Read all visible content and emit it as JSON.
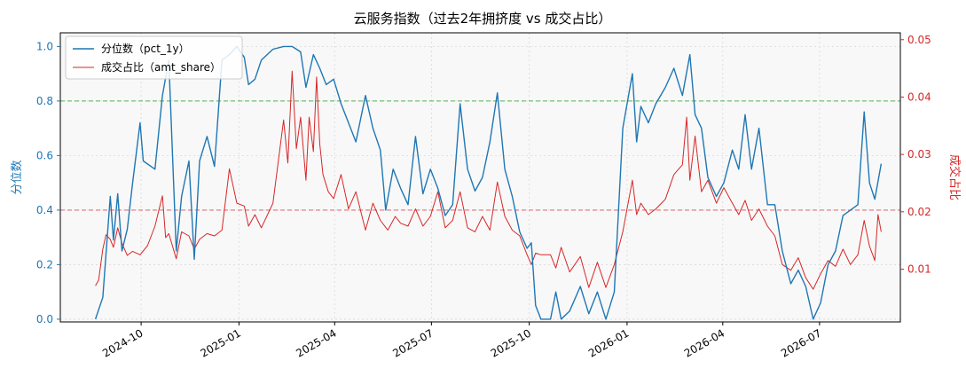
{
  "chart_data": {
    "type": "line",
    "title": "云服务指数（过去2年拥挤度 vs 成交占比）",
    "ylabel_left": "分位数",
    "ylabel_right": "成交占比",
    "x_axis": {
      "range": [
        "2024-07-17",
        "2026-09-15"
      ],
      "ticks": [
        "2024-10",
        "2025-01",
        "2025-04",
        "2025-07",
        "2025-10",
        "2026-01",
        "2026-04",
        "2026-07"
      ]
    },
    "y_left": {
      "range": [
        -0.01,
        1.05
      ],
      "ticks": [
        "0.0",
        "0.2",
        "0.4",
        "0.6",
        "0.8",
        "1.0"
      ]
    },
    "y_right": {
      "range": [
        0.0008,
        0.0512
      ],
      "ticks": [
        "0.01",
        "0.02",
        "0.03",
        "0.04",
        "0.05"
      ]
    },
    "reference_lines": [
      {
        "axis": "left",
        "value": 0.8,
        "color": "#2ca02c",
        "style": "dashed"
      },
      {
        "axis": "left",
        "value": 0.4,
        "color": "#d62728",
        "style": "dashed"
      }
    ],
    "grid": true,
    "legend_position": "top-left",
    "series": [
      {
        "name": "分位数（pct_1y）",
        "axis": "left",
        "color": "#1f77b4",
        "points": [
          [
            "2024-08-19",
            0.0
          ],
          [
            "2024-08-26",
            0.08
          ],
          [
            "2024-09-02",
            0.45
          ],
          [
            "2024-09-05",
            0.29
          ],
          [
            "2024-09-09",
            0.46
          ],
          [
            "2024-09-13",
            0.25
          ],
          [
            "2024-09-18",
            0.33
          ],
          [
            "2024-09-23",
            0.5
          ],
          [
            "2024-09-30",
            0.72
          ],
          [
            "2024-10-03",
            0.58
          ],
          [
            "2024-10-14",
            0.55
          ],
          [
            "2024-10-21",
            0.82
          ],
          [
            "2024-10-27",
            0.95
          ],
          [
            "2024-11-03",
            0.25
          ],
          [
            "2024-11-08",
            0.45
          ],
          [
            "2024-11-15",
            0.58
          ],
          [
            "2024-11-20",
            0.22
          ],
          [
            "2024-11-25",
            0.58
          ],
          [
            "2024-12-02",
            0.67
          ],
          [
            "2024-12-09",
            0.56
          ],
          [
            "2024-12-16",
            0.95
          ],
          [
            "2024-12-23",
            0.97
          ],
          [
            "2024-12-30",
            1.0
          ],
          [
            "2025-01-06",
            0.96
          ],
          [
            "2025-01-10",
            0.86
          ],
          [
            "2025-01-16",
            0.88
          ],
          [
            "2025-01-22",
            0.95
          ],
          [
            "2025-02-02",
            0.99
          ],
          [
            "2025-02-12",
            1.0
          ],
          [
            "2025-02-20",
            1.0
          ],
          [
            "2025-02-28",
            0.98
          ],
          [
            "2025-03-05",
            0.85
          ],
          [
            "2025-03-12",
            0.97
          ],
          [
            "2025-03-18",
            0.92
          ],
          [
            "2025-03-24",
            0.86
          ],
          [
            "2025-03-31",
            0.88
          ],
          [
            "2025-04-07",
            0.79
          ],
          [
            "2025-04-14",
            0.72
          ],
          [
            "2025-04-21",
            0.65
          ],
          [
            "2025-04-30",
            0.82
          ],
          [
            "2025-05-07",
            0.7
          ],
          [
            "2025-05-14",
            0.62
          ],
          [
            "2025-05-19",
            0.4
          ],
          [
            "2025-05-26",
            0.55
          ],
          [
            "2025-06-02",
            0.48
          ],
          [
            "2025-06-09",
            0.42
          ],
          [
            "2025-06-16",
            0.67
          ],
          [
            "2025-06-23",
            0.46
          ],
          [
            "2025-06-30",
            0.55
          ],
          [
            "2025-07-07",
            0.48
          ],
          [
            "2025-07-14",
            0.38
          ],
          [
            "2025-07-21",
            0.42
          ],
          [
            "2025-07-28",
            0.79
          ],
          [
            "2025-08-04",
            0.55
          ],
          [
            "2025-08-11",
            0.47
          ],
          [
            "2025-08-18",
            0.52
          ],
          [
            "2025-08-25",
            0.65
          ],
          [
            "2025-09-01",
            0.83
          ],
          [
            "2025-09-08",
            0.55
          ],
          [
            "2025-09-15",
            0.45
          ],
          [
            "2025-09-22",
            0.32
          ],
          [
            "2025-09-29",
            0.26
          ],
          [
            "2025-10-03",
            0.28
          ],
          [
            "2025-10-07",
            0.05
          ],
          [
            "2025-10-12",
            0.0
          ],
          [
            "2025-10-21",
            0.0
          ],
          [
            "2025-10-26",
            0.1
          ],
          [
            "2025-10-31",
            0.0
          ],
          [
            "2025-11-08",
            0.03
          ],
          [
            "2025-11-18",
            0.12
          ],
          [
            "2025-11-26",
            0.02
          ],
          [
            "2025-12-04",
            0.1
          ],
          [
            "2025-12-12",
            0.0
          ],
          [
            "2025-12-20",
            0.1
          ],
          [
            "2025-12-28",
            0.7
          ],
          [
            "2026-01-06",
            0.9
          ],
          [
            "2026-01-10",
            0.65
          ],
          [
            "2026-01-14",
            0.78
          ],
          [
            "2026-01-21",
            0.72
          ],
          [
            "2026-01-28",
            0.79
          ],
          [
            "2026-02-06",
            0.85
          ],
          [
            "2026-02-14",
            0.92
          ],
          [
            "2026-02-22",
            0.82
          ],
          [
            "2026-03-01",
            0.97
          ],
          [
            "2026-03-06",
            0.75
          ],
          [
            "2026-03-12",
            0.7
          ],
          [
            "2026-03-18",
            0.52
          ],
          [
            "2026-03-26",
            0.45
          ],
          [
            "2026-04-02",
            0.5
          ],
          [
            "2026-04-10",
            0.62
          ],
          [
            "2026-04-16",
            0.55
          ],
          [
            "2026-04-22",
            0.75
          ],
          [
            "2026-04-28",
            0.55
          ],
          [
            "2026-05-05",
            0.7
          ],
          [
            "2026-05-13",
            0.42
          ],
          [
            "2026-05-20",
            0.42
          ],
          [
            "2026-05-27",
            0.25
          ],
          [
            "2026-06-04",
            0.13
          ],
          [
            "2026-06-11",
            0.18
          ],
          [
            "2026-06-18",
            0.12
          ],
          [
            "2026-06-25",
            0.0
          ],
          [
            "2026-07-02",
            0.06
          ],
          [
            "2026-07-09",
            0.2
          ],
          [
            "2026-07-16",
            0.25
          ],
          [
            "2026-07-23",
            0.38
          ],
          [
            "2026-07-30",
            0.4
          ],
          [
            "2026-08-06",
            0.42
          ],
          [
            "2026-08-12",
            0.76
          ],
          [
            "2026-08-17",
            0.5
          ],
          [
            "2026-08-22",
            0.44
          ],
          [
            "2026-08-28",
            0.57
          ]
        ]
      },
      {
        "name": "成交占比（amt_share）",
        "axis": "right",
        "color": "#d62728",
        "points": [
          [
            "2024-08-19",
            0.0071
          ],
          [
            "2024-08-22",
            0.0081
          ],
          [
            "2024-08-26",
            0.0135
          ],
          [
            "2024-08-29",
            0.016
          ],
          [
            "2024-09-02",
            0.0152
          ],
          [
            "2024-09-05",
            0.0138
          ],
          [
            "2024-09-09",
            0.0172
          ],
          [
            "2024-09-13",
            0.0145
          ],
          [
            "2024-09-18",
            0.0124
          ],
          [
            "2024-09-23",
            0.0131
          ],
          [
            "2024-09-30",
            0.0125
          ],
          [
            "2024-10-07",
            0.0141
          ],
          [
            "2024-10-14",
            0.0175
          ],
          [
            "2024-10-21",
            0.0228
          ],
          [
            "2024-10-24",
            0.0155
          ],
          [
            "2024-10-27",
            0.0162
          ],
          [
            "2024-11-03",
            0.0118
          ],
          [
            "2024-11-08",
            0.0165
          ],
          [
            "2024-11-15",
            0.0158
          ],
          [
            "2024-11-20",
            0.0135
          ],
          [
            "2024-11-25",
            0.0152
          ],
          [
            "2024-12-02",
            0.0162
          ],
          [
            "2024-12-09",
            0.0158
          ],
          [
            "2024-12-16",
            0.0168
          ],
          [
            "2024-12-23",
            0.0275
          ],
          [
            "2024-12-30",
            0.0215
          ],
          [
            "2025-01-06",
            0.021
          ],
          [
            "2025-01-10",
            0.0175
          ],
          [
            "2025-01-16",
            0.0195
          ],
          [
            "2025-01-22",
            0.0172
          ],
          [
            "2025-02-02",
            0.0215
          ],
          [
            "2025-02-12",
            0.036
          ],
          [
            "2025-02-16",
            0.0285
          ],
          [
            "2025-02-20",
            0.0445
          ],
          [
            "2025-02-24",
            0.031
          ],
          [
            "2025-02-28",
            0.0365
          ],
          [
            "2025-03-05",
            0.0255
          ],
          [
            "2025-03-08",
            0.0365
          ],
          [
            "2025-03-12",
            0.0305
          ],
          [
            "2025-03-15",
            0.0435
          ],
          [
            "2025-03-18",
            0.0318
          ],
          [
            "2025-03-21",
            0.0265
          ],
          [
            "2025-03-26",
            0.0235
          ],
          [
            "2025-03-31",
            0.0223
          ],
          [
            "2025-04-07",
            0.0265
          ],
          [
            "2025-04-14",
            0.0205
          ],
          [
            "2025-04-21",
            0.0235
          ],
          [
            "2025-04-30",
            0.0168
          ],
          [
            "2025-05-07",
            0.0215
          ],
          [
            "2025-05-14",
            0.0185
          ],
          [
            "2025-05-21",
            0.0168
          ],
          [
            "2025-05-28",
            0.0192
          ],
          [
            "2025-06-02",
            0.018
          ],
          [
            "2025-06-09",
            0.0175
          ],
          [
            "2025-06-16",
            0.0205
          ],
          [
            "2025-06-23",
            0.0175
          ],
          [
            "2025-06-30",
            0.0192
          ],
          [
            "2025-07-07",
            0.0235
          ],
          [
            "2025-07-14",
            0.0172
          ],
          [
            "2025-07-21",
            0.0185
          ],
          [
            "2025-07-28",
            0.0235
          ],
          [
            "2025-08-04",
            0.0172
          ],
          [
            "2025-08-11",
            0.0165
          ],
          [
            "2025-08-18",
            0.0192
          ],
          [
            "2025-08-25",
            0.0168
          ],
          [
            "2025-09-01",
            0.0252
          ],
          [
            "2025-09-08",
            0.0192
          ],
          [
            "2025-09-15",
            0.0168
          ],
          [
            "2025-09-22",
            0.0158
          ],
          [
            "2025-09-29",
            0.0125
          ],
          [
            "2025-10-03",
            0.0108
          ],
          [
            "2025-10-07",
            0.0128
          ],
          [
            "2025-10-12",
            0.0125
          ],
          [
            "2025-10-21",
            0.0125
          ],
          [
            "2025-10-26",
            0.0102
          ],
          [
            "2025-10-31",
            0.0138
          ],
          [
            "2025-11-08",
            0.0095
          ],
          [
            "2025-11-18",
            0.0122
          ],
          [
            "2025-11-26",
            0.0068
          ],
          [
            "2025-12-04",
            0.0112
          ],
          [
            "2025-12-12",
            0.0068
          ],
          [
            "2025-12-20",
            0.0108
          ],
          [
            "2025-12-28",
            0.0165
          ],
          [
            "2026-01-06",
            0.0255
          ],
          [
            "2026-01-10",
            0.0195
          ],
          [
            "2026-01-14",
            0.0215
          ],
          [
            "2026-01-21",
            0.0195
          ],
          [
            "2026-01-28",
            0.0205
          ],
          [
            "2026-02-06",
            0.0222
          ],
          [
            "2026-02-14",
            0.0265
          ],
          [
            "2026-02-22",
            0.0282
          ],
          [
            "2026-02-26",
            0.0365
          ],
          [
            "2026-03-01",
            0.0255
          ],
          [
            "2026-03-06",
            0.0332
          ],
          [
            "2026-03-12",
            0.0235
          ],
          [
            "2026-03-18",
            0.0255
          ],
          [
            "2026-03-26",
            0.0215
          ],
          [
            "2026-04-02",
            0.0242
          ],
          [
            "2026-04-10",
            0.0215
          ],
          [
            "2026-04-16",
            0.0195
          ],
          [
            "2026-04-22",
            0.022
          ],
          [
            "2026-04-28",
            0.0185
          ],
          [
            "2026-05-05",
            0.0205
          ],
          [
            "2026-05-13",
            0.0175
          ],
          [
            "2026-05-20",
            0.0158
          ],
          [
            "2026-05-27",
            0.0108
          ],
          [
            "2026-06-04",
            0.0098
          ],
          [
            "2026-06-11",
            0.012
          ],
          [
            "2026-06-18",
            0.0085
          ],
          [
            "2026-06-25",
            0.0065
          ],
          [
            "2026-07-02",
            0.0092
          ],
          [
            "2026-07-09",
            0.0115
          ],
          [
            "2026-07-16",
            0.0105
          ],
          [
            "2026-07-23",
            0.0135
          ],
          [
            "2026-07-30",
            0.0108
          ],
          [
            "2026-08-06",
            0.0125
          ],
          [
            "2026-08-12",
            0.0185
          ],
          [
            "2026-08-17",
            0.014
          ],
          [
            "2026-08-22",
            0.0115
          ],
          [
            "2026-08-25",
            0.0195
          ],
          [
            "2026-08-28",
            0.0165
          ]
        ]
      }
    ]
  }
}
